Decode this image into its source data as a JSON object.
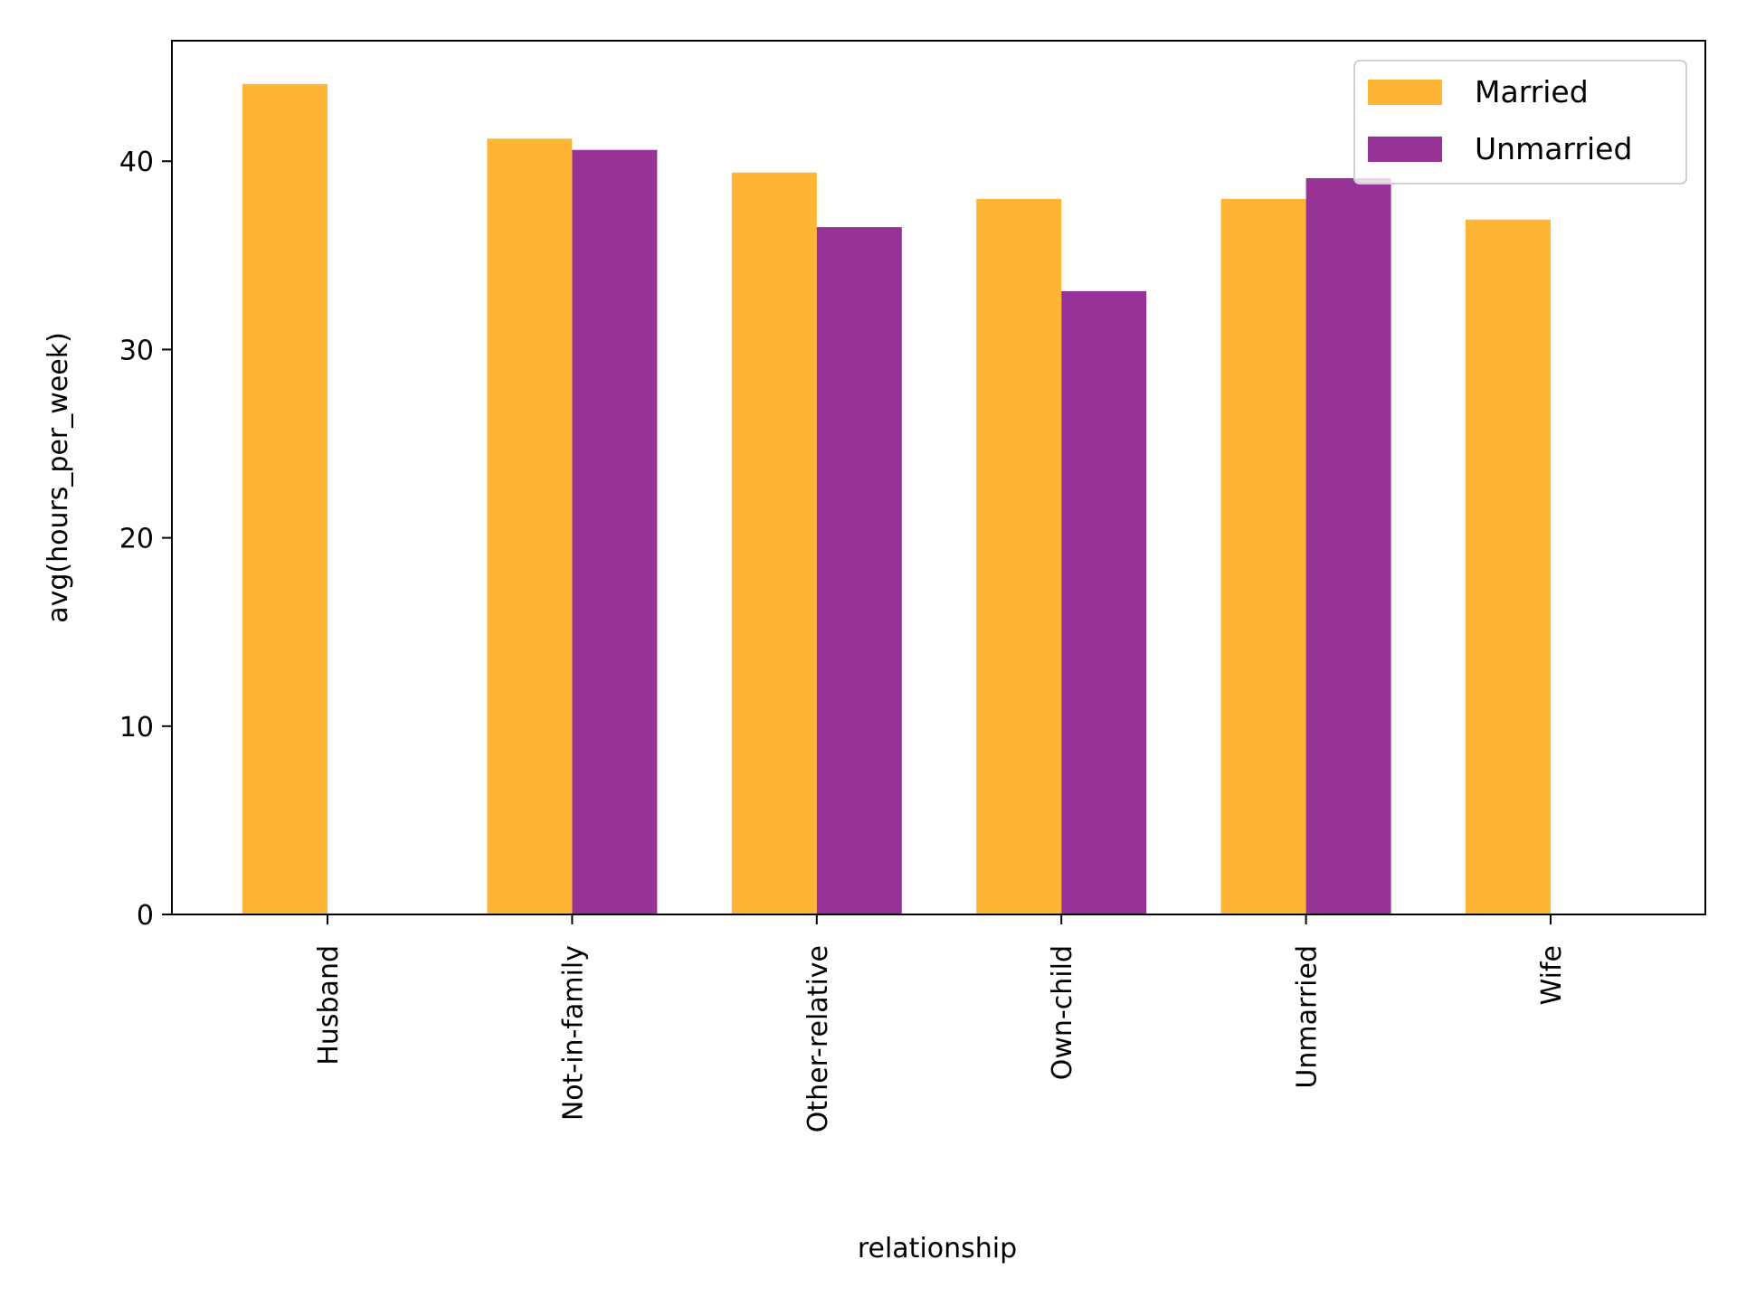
{
  "chart_data": {
    "type": "bar",
    "title": "",
    "xlabel": "relationship",
    "ylabel": "avg(hours_per_week)",
    "categories": [
      "Husband",
      "Not-in-family",
      "Other-relative",
      "Own-child",
      "Unmarried",
      "Wife"
    ],
    "series": [
      {
        "name": "Married",
        "color": "#FFB534",
        "values": [
          44.1,
          41.2,
          39.4,
          38.0,
          38.0,
          36.9
        ]
      },
      {
        "name": "Unmarried",
        "color": "#973396",
        "values": [
          null,
          40.6,
          36.5,
          33.1,
          39.1,
          null
        ]
      }
    ],
    "yticks": [
      0,
      10,
      20,
      30,
      40
    ],
    "ylim": [
      0,
      46.4
    ],
    "grid": false,
    "legend_position": "top-right"
  }
}
